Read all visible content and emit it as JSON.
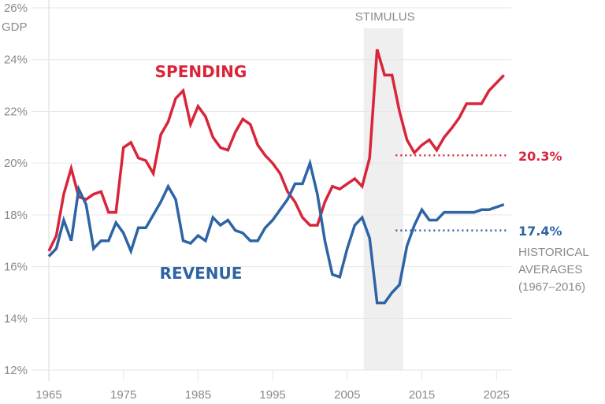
{
  "chart_data": {
    "type": "line",
    "ylabel_unit": "GDP",
    "ylim": [
      12,
      26
    ],
    "yticks": [
      12,
      14,
      16,
      18,
      20,
      22,
      24,
      26
    ],
    "ytick_labels": [
      "12%",
      "14%",
      "16%",
      "18%",
      "20%",
      "22%",
      "24%",
      "26%"
    ],
    "xlim": [
      1965,
      2027
    ],
    "xticks": [
      1965,
      1975,
      1985,
      1995,
      2005,
      2015,
      2025
    ],
    "xtick_labels": [
      "1965",
      "1975",
      "1985",
      "1995",
      "2005",
      "2015",
      "2025"
    ],
    "grid": "horizontal",
    "x": [
      1965,
      1966,
      1967,
      1968,
      1969,
      1970,
      1971,
      1972,
      1973,
      1974,
      1975,
      1976,
      1977,
      1978,
      1979,
      1980,
      1981,
      1982,
      1983,
      1984,
      1985,
      1986,
      1987,
      1988,
      1989,
      1990,
      1991,
      1992,
      1993,
      1994,
      1995,
      1996,
      1997,
      1998,
      1999,
      2000,
      2001,
      2002,
      2003,
      2004,
      2005,
      2006,
      2007,
      2008,
      2009,
      2010,
      2011,
      2012,
      2013,
      2014,
      2015,
      2016,
      2017,
      2018,
      2019,
      2020,
      2021,
      2022,
      2023,
      2024,
      2025,
      2026
    ],
    "series": [
      {
        "name": "SPENDING",
        "color": "#d8253a",
        "values": [
          16.6,
          17.2,
          18.8,
          19.8,
          18.7,
          18.6,
          18.8,
          18.9,
          18.1,
          18.1,
          20.6,
          20.8,
          20.2,
          20.1,
          19.6,
          21.1,
          21.6,
          22.5,
          22.8,
          21.5,
          22.2,
          21.8,
          21.0,
          20.6,
          20.5,
          21.2,
          21.7,
          21.5,
          20.7,
          20.3,
          20.0,
          19.6,
          18.9,
          18.5,
          17.9,
          17.6,
          17.6,
          18.5,
          19.1,
          19.0,
          19.2,
          19.4,
          19.1,
          20.2,
          24.4,
          23.4,
          23.4,
          22.0,
          20.9,
          20.4,
          20.7,
          20.9,
          20.5,
          21.0,
          21.35,
          21.75,
          22.3,
          22.3,
          22.3,
          22.8,
          23.1,
          23.4
        ]
      },
      {
        "name": "REVENUE",
        "color": "#2e64a6",
        "values": [
          16.4,
          16.7,
          17.8,
          17.0,
          19.0,
          18.4,
          16.7,
          17.0,
          17.0,
          17.7,
          17.3,
          16.6,
          17.5,
          17.5,
          18.0,
          18.5,
          19.1,
          18.6,
          17.0,
          16.9,
          17.2,
          17.0,
          17.9,
          17.6,
          17.8,
          17.4,
          17.3,
          17.0,
          17.0,
          17.5,
          17.8,
          18.2,
          18.6,
          19.2,
          19.2,
          20.0,
          18.8,
          17.0,
          15.7,
          15.6,
          16.7,
          17.6,
          17.9,
          17.1,
          14.6,
          14.6,
          15.0,
          15.3,
          16.8,
          17.6,
          18.2,
          17.8,
          17.8,
          18.1,
          18.1,
          18.1,
          18.1,
          18.1,
          18.2,
          18.2,
          18.3,
          18.4
        ]
      }
    ],
    "averages": [
      {
        "series": "SPENDING",
        "value": 20.3,
        "label": "20.3%"
      },
      {
        "series": "REVENUE",
        "value": 17.4,
        "label": "17.4%"
      }
    ],
    "averages_span": [
      2011.5,
      2026
    ],
    "averages_note": [
      "HISTORICAL",
      "AVERAGES",
      "(1967–2016)"
    ],
    "shaded_region": {
      "label": "STIMULUS",
      "from": 2007.2,
      "to": 2012.5,
      "color": "#efefef"
    }
  }
}
